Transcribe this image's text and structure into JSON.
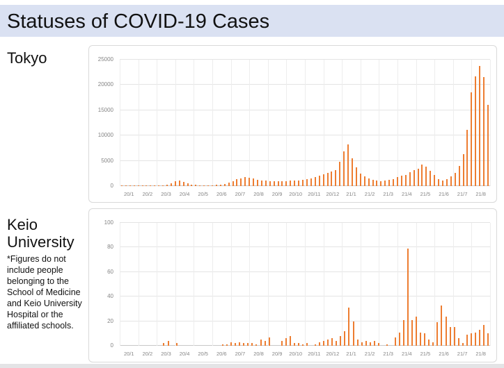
{
  "title": "Statuses of COVID-19 Cases",
  "sections": {
    "tokyo": {
      "label": "Tokyo"
    },
    "keio": {
      "label": "Keio University",
      "footnote": "*Figures do not include people belonging to the School of Medicine and Keio University Hospital or the affiliated schools."
    }
  },
  "colors": {
    "title_band": "#dae1f2",
    "bar": "#ED7D31",
    "axis_text": "#848484",
    "gridline": "#e4e4e4",
    "panel_border": "#d9d9d9"
  },
  "chart_data": [
    {
      "name": "tokyo",
      "type": "bar",
      "title": "Tokyo",
      "xlabel": "",
      "ylabel": "",
      "x_unit": "week",
      "ylim": [
        0,
        25000
      ],
      "yticks": [
        0,
        5000,
        10000,
        15000,
        20000,
        25000
      ],
      "ytick_labels": [
        "0",
        "5000",
        "10000",
        "15000",
        "20000",
        "25000"
      ],
      "grid": true,
      "legend": "none",
      "bar_color": "#ED7D31",
      "categories": [
        "20/1",
        "20/2",
        "20/3",
        "20/4",
        "20/5",
        "20/6",
        "20/7",
        "20/8",
        "20/9",
        "20/10",
        "20/11",
        "20/12",
        "21/1",
        "21/2",
        "21/3",
        "21/4",
        "21/5",
        "21/6",
        "21/7",
        "21/8"
      ],
      "values": [
        2,
        3,
        5,
        8,
        10,
        15,
        25,
        35,
        50,
        80,
        140,
        310,
        580,
        970,
        1080,
        860,
        560,
        330,
        220,
        160,
        130,
        140,
        170,
        215,
        280,
        440,
        700,
        1000,
        1330,
        1550,
        1770,
        1680,
        1460,
        1240,
        1150,
        1060,
        1000,
        950,
        930,
        950,
        1000,
        1060,
        1100,
        1150,
        1240,
        1330,
        1500,
        1770,
        2030,
        2300,
        2560,
        2830,
        3180,
        4860,
        6850,
        8180,
        5500,
        3670,
        2480,
        1900,
        1500,
        1190,
        1060,
        970,
        1060,
        1190,
        1420,
        1730,
        2000,
        2260,
        2700,
        3230,
        3500,
        4250,
        3850,
        3060,
        2170,
        1420,
        1100,
        1420,
        1900,
        2660,
        3990,
        6300,
        11100,
        18600,
        21700,
        23700,
        21500,
        16100
      ]
    },
    {
      "name": "keio",
      "type": "bar",
      "title": "Keio University",
      "xlabel": "",
      "ylabel": "",
      "x_unit": "week",
      "ylim": [
        0,
        100
      ],
      "yticks": [
        0,
        20,
        40,
        60,
        80,
        100
      ],
      "ytick_labels": [
        "0",
        "20",
        "40",
        "60",
        "80",
        "100"
      ],
      "grid": true,
      "legend": "none",
      "bar_color": "#ED7D31",
      "categories": [
        "20/1",
        "20/2",
        "20/3",
        "20/4",
        "20/5",
        "20/6",
        "20/7",
        "20/8",
        "20/9",
        "20/10",
        "20/11",
        "20/12",
        "21/1",
        "21/2",
        "21/3",
        "21/4",
        "21/5",
        "21/6",
        "21/7",
        "21/8"
      ],
      "values": [
        0,
        0,
        0,
        0,
        0,
        0,
        0,
        0,
        0,
        0,
        2,
        4,
        0,
        2,
        0,
        0,
        0,
        0,
        0,
        0,
        0,
        0,
        0,
        0,
        1,
        1,
        3,
        2,
        3,
        2,
        2,
        2,
        1,
        5,
        4,
        7,
        0,
        0,
        4,
        6,
        8,
        2,
        2,
        1,
        2,
        0,
        1,
        3,
        4,
        5,
        6,
        4,
        8,
        12,
        31,
        20,
        5,
        3,
        4,
        3,
        4,
        2,
        0,
        1,
        0,
        7,
        11,
        21,
        79,
        21,
        24,
        11,
        10,
        5,
        3,
        19,
        33,
        24,
        15,
        15,
        6,
        2,
        9,
        10,
        11,
        13,
        17,
        10
      ]
    }
  ]
}
